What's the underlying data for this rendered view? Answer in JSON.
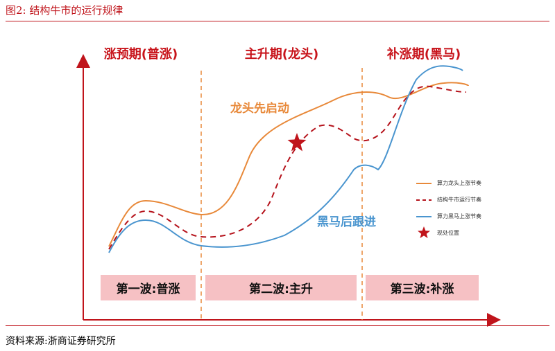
{
  "figure_title": "图2:  结构牛市的运行规律",
  "source": "资料来源:浙商证券研究所",
  "phases": [
    "涨预期(普涨)",
    "主升期(龙头)",
    "补涨期(黑马)"
  ],
  "waves": [
    "第一波:普涨",
    "第二波:主升",
    "第三波:补涨"
  ],
  "annotations": {
    "leader": "龙头先启动",
    "darkhorse": "黑马后跟进"
  },
  "legend": [
    {
      "label": "算力龙头上涨节奏",
      "style": "solid",
      "color": "#e8893a"
    },
    {
      "label": "结构牛市运行节奏",
      "style": "dashed",
      "color": "#b5121b"
    },
    {
      "label": "算力黑马上涨节奏",
      "style": "solid",
      "color": "#4a95cf"
    },
    {
      "label": "现处位置",
      "style": "star",
      "color": "#c0141b"
    }
  ],
  "colors": {
    "accent": "#c0141b",
    "leader": "#e8893a",
    "market": "#b5121b",
    "darkhorse": "#4a95cf",
    "wave_bg": "#f6c1c4"
  }
}
